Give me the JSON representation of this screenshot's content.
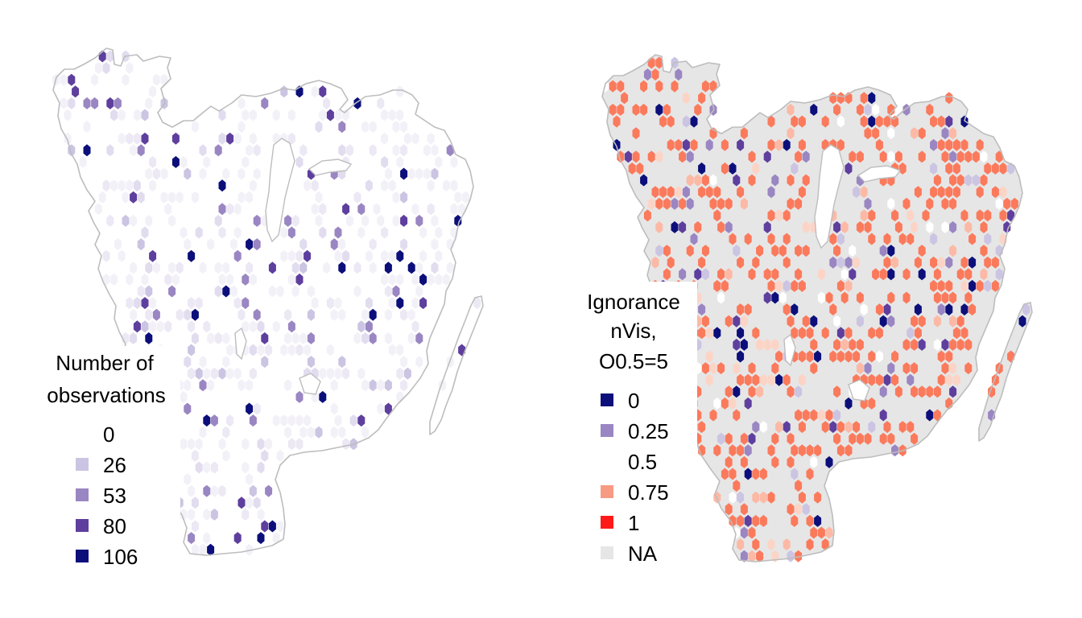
{
  "maps": [
    {
      "id": "observations",
      "legend": {
        "title_lines": [
          "Number of",
          "observations"
        ],
        "entries": [
          {
            "label": "0",
            "color": "#ffffff"
          },
          {
            "label": "26",
            "color": "#cbc4e2"
          },
          {
            "label": "53",
            "color": "#9a86c2"
          },
          {
            "label": "80",
            "color": "#5e3f9e"
          },
          {
            "label": "106",
            "color": "#0c0f7a"
          }
        ]
      }
    },
    {
      "id": "ignorance",
      "legend": {
        "title_lines": [
          "Ignorance",
          "nVis,",
          "O0.5=5"
        ],
        "entries": [
          {
            "label": "0",
            "color": "#0c0f7a"
          },
          {
            "label": "0.25",
            "color": "#9a86c2"
          },
          {
            "label": "0.5",
            "color": "#ffffff"
          },
          {
            "label": "0.75",
            "color": "#f79a82"
          },
          {
            "label": "1",
            "color": "#ff1a1a"
          },
          {
            "label": "NA",
            "color": "#e6e6e6"
          }
        ]
      }
    }
  ],
  "colors": {
    "coastline": "#bdbdbd",
    "na_fill": "#e6e6e6",
    "high_ignorance": "#fb7a5c",
    "mid_ignorance": "#fcb9a5",
    "low_obs": "#ece8f4"
  }
}
